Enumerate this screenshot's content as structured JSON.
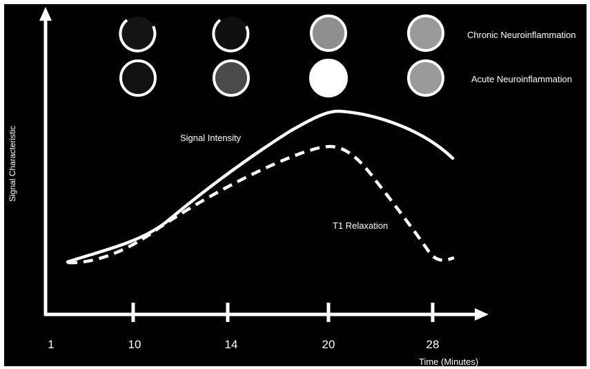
{
  "axes": {
    "ylabel": "Signal Characteristic",
    "xlabel": "Time (Minutes)",
    "xticks": [
      "1",
      "10",
      "14",
      "20",
      "28"
    ]
  },
  "rows": [
    {
      "label": "Chronic Neuroinflammation",
      "circles": [
        {
          "fill": "#141414",
          "style": "crescent"
        },
        {
          "fill": "#0f0f0f",
          "style": "crescent"
        },
        {
          "fill": "#8f8f8f",
          "style": "full"
        },
        {
          "fill": "#9a9a9a",
          "style": "full"
        }
      ]
    },
    {
      "label": "Acute Neuroinflammation",
      "circles": [
        {
          "fill": "#111111",
          "style": "full"
        },
        {
          "fill": "#4a4a4a",
          "style": "full"
        },
        {
          "fill": "#ffffff",
          "style": "full"
        },
        {
          "fill": "#9a9a9a",
          "style": "full"
        }
      ]
    }
  ],
  "curves": [
    {
      "label": "Signal Intensity",
      "line": "solid"
    },
    {
      "label": "T1 Relaxation",
      "line": "dashed"
    }
  ]
}
